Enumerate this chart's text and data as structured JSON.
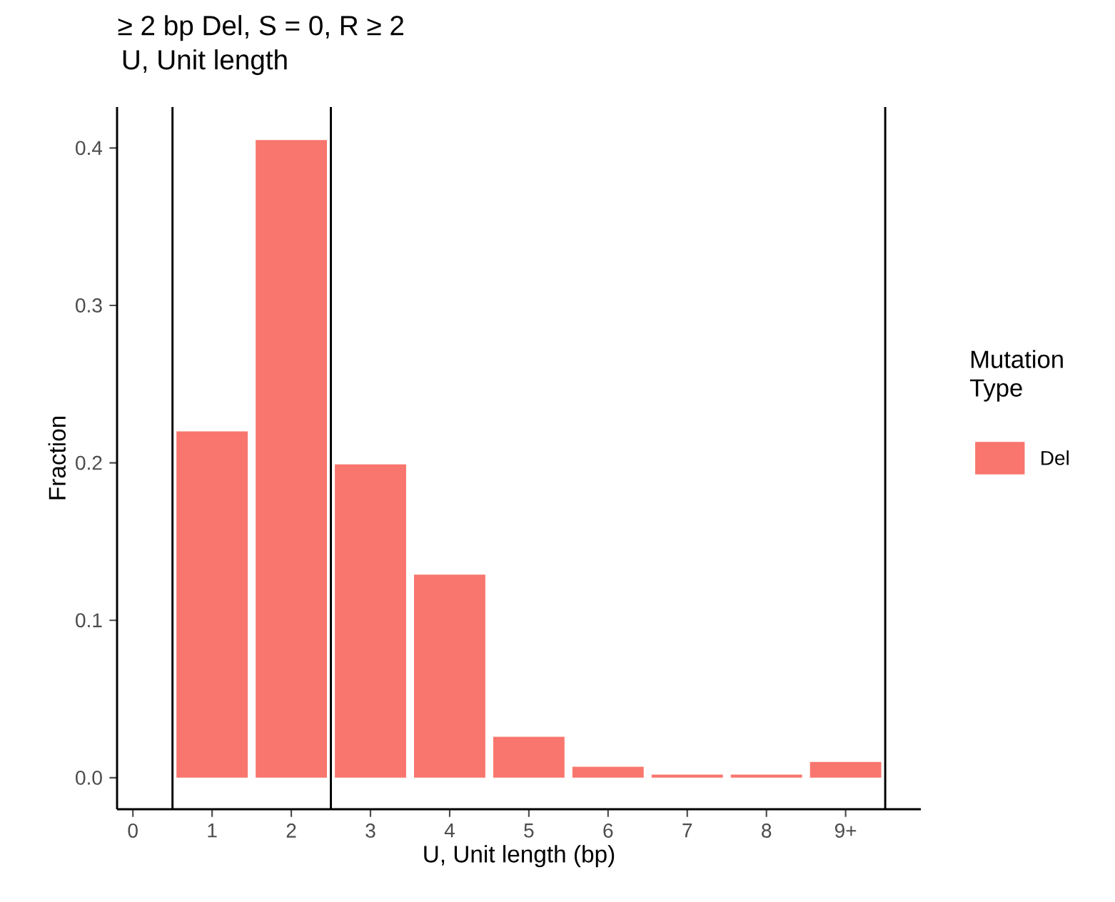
{
  "chart_data": {
    "type": "bar",
    "title": "≥ 2 bp Del, S = 0, R ≥ 2",
    "subtitle": "U, Unit length",
    "xlabel": "U, Unit length (bp)",
    "ylabel": "Fraction",
    "legend_title": "Mutation Type",
    "categories": [
      "0",
      "1",
      "2",
      "3",
      "4",
      "5",
      "6",
      "7",
      "8",
      "9+"
    ],
    "series": [
      {
        "name": "Del",
        "color": "#f8766d",
        "values": [
          0,
          0.22,
          0.405,
          0.199,
          0.129,
          0.026,
          0.007,
          0.002,
          0.002,
          0.01
        ]
      }
    ],
    "ylim": [
      -0.02,
      0.426
    ],
    "yticks": [
      {
        "value": 0,
        "label": "0.0"
      },
      0.1,
      0.2,
      0.3,
      0.4
    ],
    "grid": false,
    "legend": "right"
  }
}
